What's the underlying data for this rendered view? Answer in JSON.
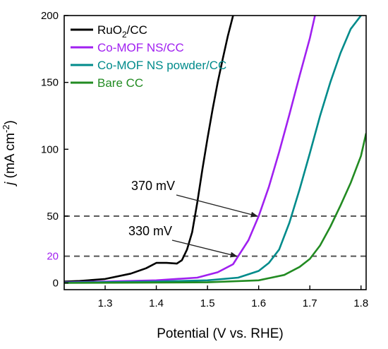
{
  "chart_data": {
    "type": "line",
    "xlabel": "Potential (V vs. RHE)",
    "ylabel_italic": "j",
    "ylabel_rest": " (mA cm",
    "ylabel_sup": "-2",
    "ylabel_close": ")",
    "xlim": [
      1.22,
      1.81
    ],
    "ylim": [
      -5,
      200
    ],
    "xticks": [
      1.3,
      1.4,
      1.5,
      1.6,
      1.7,
      1.8
    ],
    "yticks": [
      0,
      50,
      100,
      150,
      200
    ],
    "extra_ytick": {
      "value": 20,
      "label": "20",
      "color": "#a020f0"
    },
    "reference_lines": [
      50,
      20
    ],
    "legend_position": "top-left",
    "series": [
      {
        "name": "RuO₂/CC",
        "name_main": "RuO",
        "name_sub": "2",
        "name_tail": "/CC",
        "color": "#000000",
        "points": [
          [
            1.22,
            1
          ],
          [
            1.25,
            1.5
          ],
          [
            1.3,
            3
          ],
          [
            1.35,
            7
          ],
          [
            1.38,
            11
          ],
          [
            1.4,
            15
          ],
          [
            1.42,
            15
          ],
          [
            1.44,
            14.5
          ],
          [
            1.45,
            17
          ],
          [
            1.46,
            25
          ],
          [
            1.47,
            38
          ],
          [
            1.48,
            60
          ],
          [
            1.49,
            85
          ],
          [
            1.5,
            108
          ],
          [
            1.51,
            130
          ],
          [
            1.52,
            150
          ],
          [
            1.53,
            168
          ],
          [
            1.54,
            185
          ],
          [
            1.55,
            200
          ]
        ]
      },
      {
        "name": "Co-MOF NS/CC",
        "name_main": "Co-MOF NS/CC",
        "name_sub": "",
        "name_tail": "",
        "color": "#a020f0",
        "points": [
          [
            1.22,
            0.5
          ],
          [
            1.3,
            1
          ],
          [
            1.4,
            2
          ],
          [
            1.48,
            4
          ],
          [
            1.52,
            8
          ],
          [
            1.55,
            14
          ],
          [
            1.56,
            20
          ],
          [
            1.58,
            32
          ],
          [
            1.6,
            50
          ],
          [
            1.62,
            72
          ],
          [
            1.64,
            98
          ],
          [
            1.66,
            126
          ],
          [
            1.68,
            155
          ],
          [
            1.7,
            183
          ],
          [
            1.71,
            200
          ]
        ]
      },
      {
        "name": "Co-MOF NS powder/CC",
        "name_main": "Co-MOF NS powder/CC",
        "name_sub": "",
        "name_tail": "",
        "color": "#008b8b",
        "points": [
          [
            1.22,
            0.3
          ],
          [
            1.4,
            1
          ],
          [
            1.5,
            2
          ],
          [
            1.56,
            4
          ],
          [
            1.6,
            9
          ],
          [
            1.62,
            15
          ],
          [
            1.64,
            25
          ],
          [
            1.66,
            45
          ],
          [
            1.68,
            70
          ],
          [
            1.7,
            97
          ],
          [
            1.72,
            125
          ],
          [
            1.74,
            150
          ],
          [
            1.76,
            172
          ],
          [
            1.78,
            190
          ],
          [
            1.8,
            200
          ]
        ]
      },
      {
        "name": "Bare CC",
        "name_main": "Bare CC",
        "name_sub": "",
        "name_tail": "",
        "color": "#228b22",
        "points": [
          [
            1.22,
            0
          ],
          [
            1.5,
            0.5
          ],
          [
            1.6,
            2
          ],
          [
            1.65,
            6
          ],
          [
            1.68,
            12
          ],
          [
            1.7,
            18
          ],
          [
            1.72,
            28
          ],
          [
            1.74,
            42
          ],
          [
            1.76,
            58
          ],
          [
            1.78,
            75
          ],
          [
            1.8,
            95
          ],
          [
            1.81,
            112
          ]
        ]
      }
    ],
    "annotations": [
      {
        "text": "370 mV",
        "arrow_to": [
          1.6,
          50
        ]
      },
      {
        "text": "330 mV",
        "arrow_to": [
          1.56,
          20
        ]
      }
    ]
  }
}
